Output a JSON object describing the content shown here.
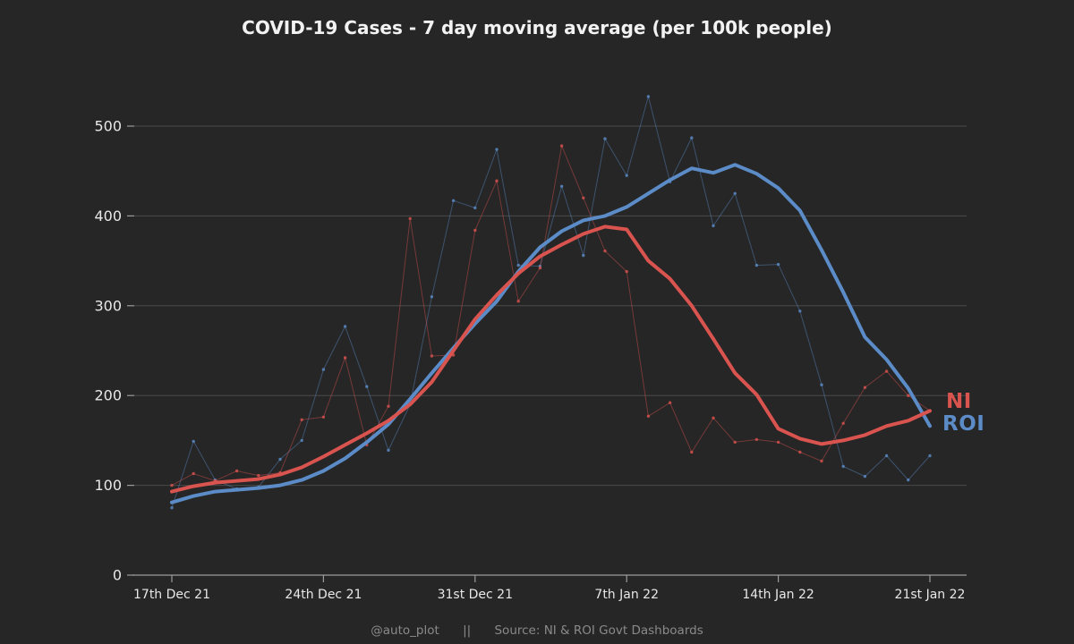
{
  "title": "COVID-19 Cases - 7 day moving average (per 100k people)",
  "footer": {
    "handle": "@auto_plot",
    "separator": "||",
    "source": "Source: NI & ROI Govt Dashboards"
  },
  "colors": {
    "background": "#262626",
    "grid": "#4a4a4a",
    "axis": "#9c9c9c",
    "tick_label": "#e8e8e8",
    "title": "#f2f2f2",
    "footer": "#8a8a8a",
    "ni": "#d9534f",
    "roi": "#5b8cc8"
  },
  "chart_data": {
    "type": "line",
    "title": "COVID-19 Cases - 7 day moving average (per 100k people)",
    "xlabel": "",
    "ylabel": "",
    "x_tick_labels": [
      "17th Dec 21",
      "24th Dec 21",
      "31st Dec 21",
      "7th Jan 22",
      "14th Jan 22",
      "21st Jan 22"
    ],
    "x_tick_indices": [
      0,
      7,
      14,
      21,
      28,
      35
    ],
    "y_ticks": [
      0,
      100,
      200,
      300,
      400,
      500
    ],
    "ylim": [
      0,
      545
    ],
    "grid": "horizontal",
    "legend_position": "right-of-line-ends",
    "legend": [
      {
        "label": "NI",
        "color_key": "ni"
      },
      {
        "label": "ROI",
        "color_key": "roi"
      }
    ],
    "series": [
      {
        "name": "ROI daily cases per 100k",
        "region": "roi",
        "role": "daily",
        "width": "thin",
        "color_key": "roi",
        "values": [
          75,
          149,
          106,
          96,
          98,
          129,
          150,
          229,
          277,
          210,
          139,
          190,
          310,
          417,
          409,
          474,
          345,
          344,
          433,
          356,
          486,
          445,
          533,
          438,
          487,
          389,
          425,
          345,
          346,
          294,
          212,
          121,
          110,
          133,
          106,
          133
        ]
      },
      {
        "name": "NI daily cases per 100k",
        "region": "ni",
        "role": "daily",
        "width": "thin",
        "color_key": "ni",
        "values": [
          100,
          113,
          105,
          116,
          111,
          114,
          173,
          176,
          242,
          145,
          188,
          397,
          244,
          245,
          384,
          439,
          305,
          342,
          478,
          420,
          361,
          338,
          177,
          192,
          137,
          175,
          148,
          151,
          148,
          137,
          127,
          169,
          209,
          227,
          200,
          183
        ]
      },
      {
        "name": "ROI 7 day moving average",
        "region": "roi",
        "role": "average",
        "width": "thick",
        "color_key": "roi",
        "values": [
          81,
          88,
          93,
          95,
          97,
          100,
          106,
          116,
          130,
          148,
          168,
          196,
          225,
          253,
          280,
          305,
          338,
          365,
          383,
          395,
          400,
          410,
          425,
          440,
          453,
          448,
          457,
          447,
          431,
          406,
          362,
          315,
          265,
          240,
          208,
          166
        ]
      },
      {
        "name": "NI 7 day moving average",
        "region": "ni",
        "role": "average",
        "width": "thick",
        "color_key": "ni",
        "values": [
          93,
          99,
          103,
          105,
          107,
          112,
          120,
          132,
          145,
          158,
          172,
          190,
          215,
          250,
          285,
          312,
          336,
          355,
          368,
          380,
          388,
          385,
          350,
          330,
          300,
          263,
          225,
          201,
          163,
          152,
          146,
          150,
          156,
          166,
          172,
          183
        ]
      }
    ]
  }
}
